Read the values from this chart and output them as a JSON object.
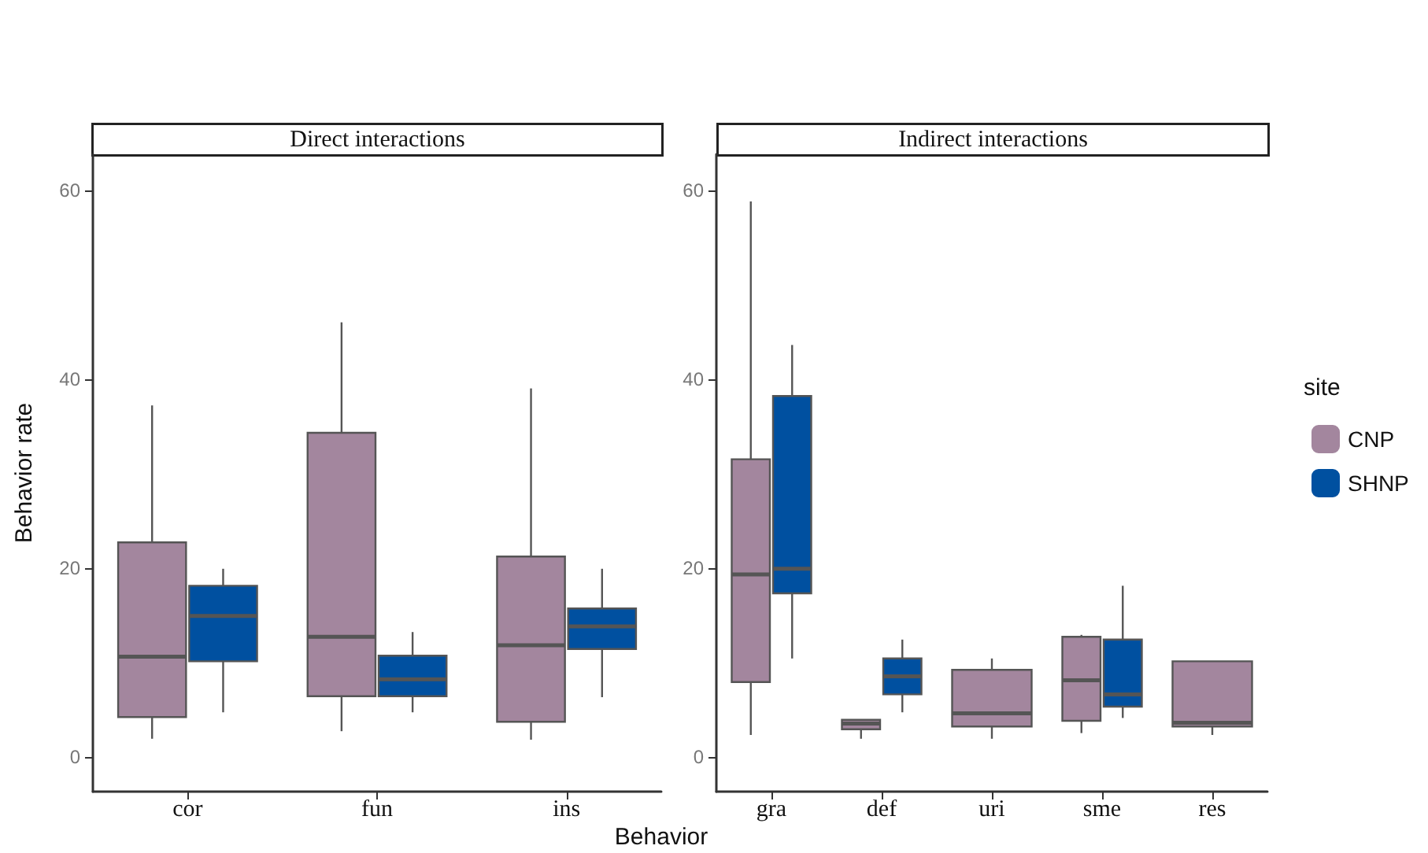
{
  "chart_data": [
    {
      "type": "box",
      "title": "Direct interactions",
      "xlabel": "Behavior",
      "ylabel": "Behavior rate",
      "categories": [
        "cor",
        "fun",
        "ins"
      ],
      "ylim": [
        -3.7,
        63.8
      ],
      "yticks": [
        0,
        20,
        40,
        60
      ],
      "series": [
        {
          "color": "#a3869e",
          "boxes": [
            {
              "low": 1.9,
              "q1": 4.2,
              "median": 10.6,
              "q3": 22.7,
              "high": 37.2
            },
            {
              "low": 2.7,
              "q1": 6.4,
              "median": 12.7,
              "q3": 34.3,
              "high": 46
            },
            {
              "low": 1.8,
              "q1": 3.7,
              "median": 11.8,
              "q3": 21.2,
              "high": 39
            }
          ]
        },
        {
          "color": "#0050a0",
          "boxes": [
            {
              "low": 4.7,
              "q1": 10.1,
              "median": 14.9,
              "q3": 18.1,
              "high": 19.9
            },
            {
              "low": 4.7,
              "q1": 6.4,
              "median": 8.2,
              "q3": 10.7,
              "high": 13.2
            },
            {
              "low": 6.3,
              "q1": 11.4,
              "median": 13.8,
              "q3": 15.7,
              "high": 19.9
            }
          ]
        }
      ]
    },
    {
      "type": "box",
      "title": "Indirect interactions",
      "categories": [
        "gra",
        "def",
        "uri",
        "sme",
        "res"
      ],
      "ylim": [
        -3.7,
        63.8
      ],
      "yticks": [
        0,
        20,
        40,
        60
      ],
      "legend": "right",
      "legend_title": "site",
      "series": [
        {
          "name": "CNP",
          "color": "#a3869e",
          "boxes": [
            {
              "low": 2.3,
              "q1": 7.9,
              "median": 19.3,
              "q3": 31.5,
              "high": 58.8
            },
            {
              "low": 1.9,
              "q1": 2.9,
              "median": 3.5,
              "q3": 3.9,
              "high": 3.9
            },
            {
              "low": 1.9,
              "q1": 3.2,
              "median": 4.6,
              "q3": 9.2,
              "high": 10.4
            },
            {
              "low": 2.5,
              "q1": 3.8,
              "median": 8.1,
              "q3": 12.7,
              "high": 12.9
            },
            {
              "low": 2.3,
              "q1": 3.2,
              "median": 3.6,
              "q3": 10.1,
              "high": 10.1
            }
          ]
        },
        {
          "name": "SHNP",
          "color": "#0050a0",
          "boxes": [
            {
              "low": 10.4,
              "q1": 17.3,
              "median": 19.9,
              "q3": 38.2,
              "high": 43.6
            },
            {
              "low": 4.7,
              "q1": 6.6,
              "median": 8.5,
              "q3": 10.4,
              "high": 12.4
            },
            null,
            {
              "low": 4.1,
              "q1": 5.3,
              "median": 6.6,
              "q3": 12.4,
              "high": 18.1
            },
            null
          ]
        }
      ]
    }
  ]
}
